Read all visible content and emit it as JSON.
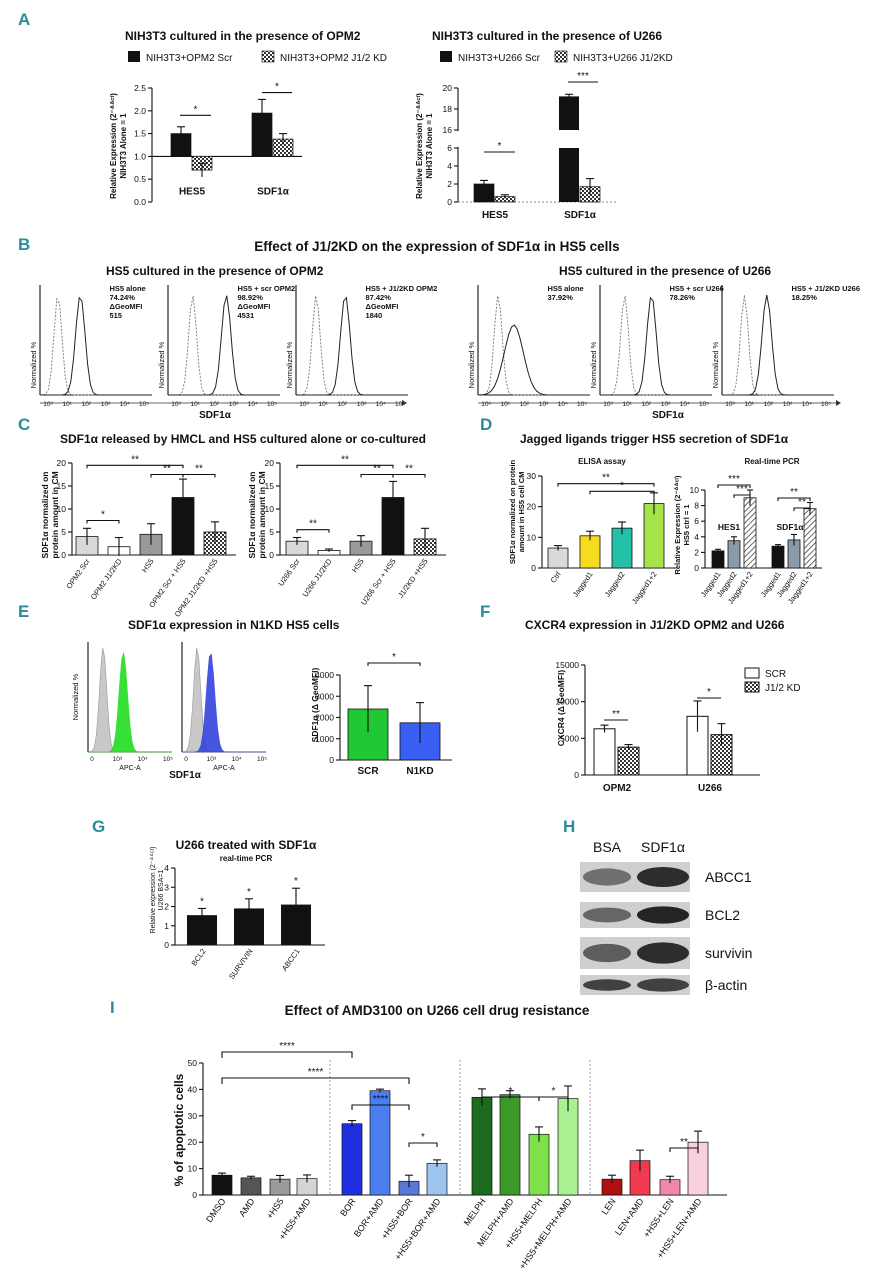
{
  "panel_labels": [
    "A",
    "B",
    "C",
    "D",
    "E",
    "F",
    "G",
    "H",
    "I"
  ],
  "chart_data": [
    {
      "id": "A1",
      "type": "bar",
      "title": "NIH3T3 cultured in the presence of OPM2",
      "legend": [
        "NIH3T3+OPM2 Scr",
        "NIH3T3+OPM2 J1/2 KD"
      ],
      "ylabel": "Relative Expression (2 -ΔΔCt) NIH3T3 Alone = 1",
      "ylim": [
        0,
        2.5
      ],
      "yticks": [
        "0.0",
        "0.5",
        "1.0",
        "1.5",
        "2.0",
        "2.5"
      ],
      "baseline": 1.0,
      "categories": [
        "HES5",
        "SDF1α"
      ],
      "series": [
        {
          "name": "NIH3T3+OPM2 Scr",
          "pattern": "solid",
          "values": [
            1.5,
            1.95
          ],
          "errors": [
            0.15,
            0.3
          ]
        },
        {
          "name": "NIH3T3+OPM2 J1/2 KD",
          "pattern": "check",
          "values": [
            0.7,
            1.38
          ],
          "errors": [
            0.15,
            0.12
          ]
        }
      ],
      "sig": [
        "*",
        "*"
      ]
    },
    {
      "id": "A2",
      "type": "bar",
      "title": "NIH3T3 cultured in the presence of U266",
      "legend": [
        "NIH3T3+U266 Scr",
        "NIH3T3+U266 J1/2KD"
      ],
      "ylabel": "Relative Expression (2 -ΔΔCt) NIH3T3 Alone = 1",
      "yticks": [
        "0",
        "2",
        "4",
        "6",
        "16",
        "18",
        "20"
      ],
      "categories": [
        "HES5",
        "SDF1α"
      ],
      "series": [
        {
          "name": "NIH3T3+U266 Scr",
          "pattern": "solid",
          "values": [
            2.0,
            19.2
          ],
          "errors": [
            0.4,
            0.2
          ]
        },
        {
          "name": "NIH3T3+U266 J1/2KD",
          "pattern": "check",
          "values": [
            0.6,
            1.7
          ],
          "errors": [
            0.2,
            0.9
          ]
        }
      ],
      "sig": [
        "*",
        "***"
      ]
    },
    {
      "id": "B",
      "type": "histogram",
      "title": "Effect of J1/2KD on the expression of SDF1α in HS5 cells",
      "group_titles": [
        "HS5 cultured in the presence of OPM2",
        "HS5 cultured in the presence of U266"
      ],
      "ylabel": "Normalized %",
      "xlabel": "SDF1α",
      "xticks": [
        "10³",
        "10¹",
        "10²",
        "10³",
        "10⁴",
        "10⁵"
      ],
      "plots": [
        {
          "lines": [
            "HS5 alone",
            "74.24%",
            "ΔGeoMFI",
            "515"
          ]
        },
        {
          "lines": [
            "HS5 + scr OPM2",
            "98.92%",
            "ΔGeoMFI",
            "4531"
          ]
        },
        {
          "lines": [
            "HS5 + J1/2KD OPM2",
            "87.42%",
            "ΔGeoMFI",
            "1840"
          ]
        },
        {
          "lines": [
            "HS5 alone",
            "37.92%"
          ]
        },
        {
          "lines": [
            "HS5 + scr U266",
            "78.26%"
          ]
        },
        {
          "lines": [
            "HS5 + J1/2KD U266",
            "18.25%"
          ]
        }
      ]
    },
    {
      "id": "C1",
      "type": "bar",
      "title": "SDF1α released by HMCL  and HS5 cultured alone or co-cultured",
      "ylabel": "SDF1α normalized on protein amount in CM",
      "ylim": [
        0,
        20
      ],
      "yticks": [
        "0",
        "5",
        "10",
        "15",
        "20"
      ],
      "categories": [
        "OPM2 Scr",
        "OPM2 J1/2KD",
        "HS5",
        "OPM2 Scr + HS5",
        "OPM2 J1/2KD +HS5"
      ],
      "values": [
        4,
        1.8,
        4.5,
        12.5,
        5
      ],
      "errors": [
        1.8,
        2,
        2.3,
        4,
        2.2
      ],
      "fills": [
        "#d9d9d9",
        "white",
        "#9a9a9a",
        "#111111",
        "check"
      ],
      "sig": [
        "*",
        "**",
        "**",
        "**"
      ]
    },
    {
      "id": "C2",
      "type": "bar",
      "ylabel": "SDF1α normalized on protein amount in CM",
      "ylim": [
        0,
        20
      ],
      "yticks": [
        "0",
        "5",
        "10",
        "15",
        "20"
      ],
      "categories": [
        "U266 Scr",
        "U266 J1/2KD",
        "HS5",
        "U266 Scr + HS5",
        "J1/2KD +HS5"
      ],
      "values": [
        3,
        1,
        3,
        12.5,
        3.5
      ],
      "errors": [
        0.8,
        0.3,
        1.2,
        3.5,
        2.3
      ],
      "fills": [
        "#d9d9d9",
        "white",
        "#9a9a9a",
        "#111111",
        "check"
      ],
      "sig": [
        "**",
        "**",
        "**",
        "**"
      ]
    },
    {
      "id": "D1",
      "type": "bar",
      "title": "Jagged ligands trigger HS5 secretion of SDF1α",
      "subtitle": "ELISA assay",
      "ylabel": "SDF1α normalized on protein amount in HS5 cell CM",
      "ylim": [
        0,
        30
      ],
      "yticks": [
        "0",
        "10",
        "20",
        "30"
      ],
      "categories": [
        "Ctrl",
        "Jagged1",
        "Jagged2",
        "Jagged1+2"
      ],
      "values": [
        6.5,
        10.5,
        13,
        21
      ],
      "errors": [
        0.8,
        1.5,
        2,
        3.5
      ],
      "fills": [
        "#d9d9d9",
        "#f5dc1e",
        "#25c0a8",
        "#a6e34a"
      ],
      "sig": [
        "**",
        "*"
      ]
    },
    {
      "id": "D2",
      "type": "bar",
      "subtitle": "Real-time PCR",
      "ylabel": "Relative Expression (2 -ΔΔCt) HS5 ctrl = 1",
      "ylim": [
        0,
        10
      ],
      "yticks": [
        "0",
        "2",
        "4",
        "6",
        "8",
        "10"
      ],
      "groups": [
        "HES1",
        "SDF1α"
      ],
      "categories": [
        "Jagged1",
        "Jagged2",
        "Jagged1+2",
        "Jagged1",
        "Jagged2",
        "Jagged1+2"
      ],
      "values": [
        2.2,
        3.5,
        9,
        2.8,
        3.6,
        7.6
      ],
      "errors": [
        0.2,
        0.5,
        1,
        0.2,
        0.7,
        0.8
      ],
      "sig": [
        "***",
        "***",
        "**",
        "**"
      ]
    },
    {
      "id": "E",
      "type": "bar",
      "title": "SDF1α expression in N1KD HS5 cells",
      "hist_ylabel": "Normalized %",
      "hist_xlabel": "APC-A",
      "hist_shared_xlabel": "SDF1α",
      "hist_xticks": [
        "0",
        "10³",
        "10⁴",
        "10⁵"
      ],
      "ylabel": "SDF1α (Δ GeoMFI)",
      "ylim": [
        0,
        4000
      ],
      "yticks": [
        "0",
        "1000",
        "2000",
        "3000",
        "4000"
      ],
      "categories": [
        "SCR",
        "N1KD"
      ],
      "values": [
        2400,
        1750
      ],
      "errors": [
        1100,
        950
      ],
      "fills": [
        "#22c833",
        "#3a5ff5"
      ],
      "sig": [
        "*"
      ]
    },
    {
      "id": "F",
      "type": "bar",
      "title": "CXCR4 expression in J1/2KD OPM2 and U266",
      "legend": [
        "SCR",
        "J1/2 KD"
      ],
      "ylabel": "CXCR4 (Δ GeoMFI)",
      "ylim": [
        0,
        15000
      ],
      "yticks": [
        "0",
        "5000",
        "10000",
        "15000"
      ],
      "categories": [
        "OPM2",
        "U266"
      ],
      "series": [
        {
          "name": "SCR",
          "values": [
            6300,
            8000
          ],
          "errors": [
            500,
            2100
          ]
        },
        {
          "name": "J1/2 KD",
          "values": [
            3800,
            5500
          ],
          "errors": [
            350,
            1500
          ]
        }
      ],
      "sig": [
        "**",
        "*"
      ]
    },
    {
      "id": "G",
      "type": "bar",
      "title": "U266 treated with SDF1α",
      "subtitle": "real-time PCR",
      "ylabel": "Relative expression (2 -ΔΔCt) U266 BSA=1",
      "ylim": [
        0,
        4
      ],
      "yticks": [
        "0",
        "1",
        "2",
        "3",
        "4"
      ],
      "categories": [
        "BCL2",
        "SURVIVIN",
        "ABCC1"
      ],
      "values": [
        1.55,
        1.9,
        2.1
      ],
      "errors": [
        0.35,
        0.5,
        0.85
      ],
      "sig": [
        "*",
        "*",
        "*"
      ]
    },
    {
      "id": "H",
      "type": "blot",
      "columns": [
        "BSA",
        "SDF1α"
      ],
      "rows": [
        "ABCC1",
        "BCL2",
        "survivin",
        "β-actin"
      ]
    },
    {
      "id": "I",
      "type": "bar",
      "title": "Effect of AMD3100 on U266 cell drug resistance",
      "ylabel": "% of apoptotic cells",
      "ylim": [
        0,
        50
      ],
      "yticks": [
        "0",
        "10",
        "20",
        "30",
        "40",
        "50"
      ],
      "categories": [
        "DMSO",
        "AMD",
        "+HS5",
        "+HS5+AMD",
        "BOR",
        "BOR+AMD",
        "+HS5+BOR",
        "+HS5+BOR+AMD",
        "MELPH",
        "MELPH+AMD",
        "+HS5+MELPH",
        "+HS5+MELPH+AMD",
        "LEN",
        "LEN+AMD",
        "+HS5+LEN",
        "+HS5+LEN+AMD"
      ],
      "values": [
        7.5,
        6.5,
        6,
        6.2,
        27,
        39.5,
        5.2,
        12,
        37,
        38,
        23,
        36.5,
        6,
        13,
        5.8,
        20
      ],
      "errors": [
        0.8,
        0.6,
        1.4,
        1.4,
        1.2,
        0.6,
        2.3,
        1.3,
        3.2,
        1.5,
        2.8,
        4.8,
        1.5,
        4,
        1.3,
        4.2
      ],
      "fills": [
        "#111111",
        "#555555",
        "#9a9a9a",
        "#d4d4d4",
        "#2030e0",
        "#4d7ef0",
        "#5a78d8",
        "#9ec4f0",
        "#1e6a1e",
        "#3c9a28",
        "#7ee04a",
        "#a8f090",
        "#b01010",
        "#f03a50",
        "#f088a8",
        "#f8d0e0"
      ],
      "sig": [
        "****",
        "****",
        "****",
        "*",
        "*",
        "*",
        "**"
      ]
    }
  ]
}
